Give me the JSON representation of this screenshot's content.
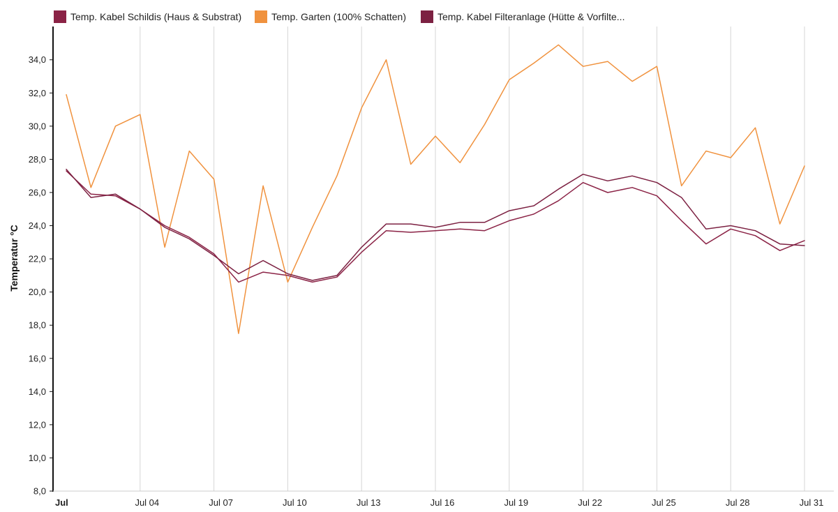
{
  "chart_data": {
    "type": "line",
    "ylabel": "Temperatur °C",
    "ylim": [
      8,
      36
    ],
    "y_ticks": [
      "8,0",
      "10,0",
      "12,0",
      "14,0",
      "16,0",
      "18,0",
      "20,0",
      "22,0",
      "24,0",
      "26,0",
      "28,0",
      "30,0",
      "32,0",
      "34,0"
    ],
    "x_ticks": [
      "Jul",
      "Jul 04",
      "Jul 07",
      "Jul 10",
      "Jul 13",
      "Jul 16",
      "Jul 19",
      "Jul 22",
      "Jul 25",
      "Jul 28",
      "Jul 31"
    ],
    "x_tick_days": [
      1,
      4,
      7,
      10,
      13,
      16,
      19,
      22,
      25,
      28,
      31
    ],
    "x_range": [
      "Jul 1",
      "Jul 31"
    ],
    "grid": "vertical",
    "legend_position": "top-left",
    "x": [
      "Jul 1",
      "Jul 2",
      "Jul 3",
      "Jul 4",
      "Jul 5",
      "Jul 6",
      "Jul 7",
      "Jul 8",
      "Jul 9",
      "Jul 10",
      "Jul 11",
      "Jul 12",
      "Jul 13",
      "Jul 14",
      "Jul 15",
      "Jul 16",
      "Jul 17",
      "Jul 18",
      "Jul 19",
      "Jul 20",
      "Jul 21",
      "Jul 22",
      "Jul 23",
      "Jul 24",
      "Jul 25",
      "Jul 26",
      "Jul 27",
      "Jul 28",
      "Jul 29",
      "Jul 30",
      "Jul 31"
    ],
    "series": [
      {
        "name": "Temp. Kabel Schildis (Haus & Substrat)",
        "color": "#8b2346",
        "values": [
          27.3,
          25.9,
          25.8,
          25.0,
          24.0,
          23.3,
          22.3,
          20.6,
          21.2,
          21.0,
          20.6,
          20.9,
          22.4,
          23.7,
          23.6,
          23.7,
          23.8,
          23.7,
          24.3,
          24.7,
          25.5,
          26.6,
          26.0,
          26.3,
          25.8,
          24.3,
          22.9,
          23.8,
          23.4,
          22.5,
          23.1
        ]
      },
      {
        "name": "Temp. Garten (100% Schatten)",
        "color": "#f0923e",
        "values": [
          31.9,
          26.3,
          30.0,
          30.7,
          22.7,
          28.5,
          26.8,
          17.5,
          26.4,
          20.6,
          23.9,
          27.0,
          31.1,
          34.0,
          27.7,
          29.4,
          27.8,
          30.1,
          32.8,
          33.8,
          34.9,
          33.6,
          33.9,
          32.7,
          33.6,
          26.4,
          28.5,
          28.1,
          29.9,
          24.1,
          27.6
        ]
      },
      {
        "name": "Temp. Kabel Filteranlage (Hütte & Vorfilte...",
        "color": "#7c2142",
        "values": [
          27.4,
          25.7,
          25.9,
          25.0,
          23.9,
          23.2,
          22.2,
          21.1,
          21.9,
          21.1,
          20.7,
          21.0,
          22.7,
          24.1,
          24.1,
          23.9,
          24.2,
          24.2,
          24.9,
          25.2,
          26.2,
          27.1,
          26.7,
          27.0,
          26.6,
          25.7,
          23.8,
          24.0,
          23.7,
          22.9,
          22.8
        ]
      }
    ]
  }
}
